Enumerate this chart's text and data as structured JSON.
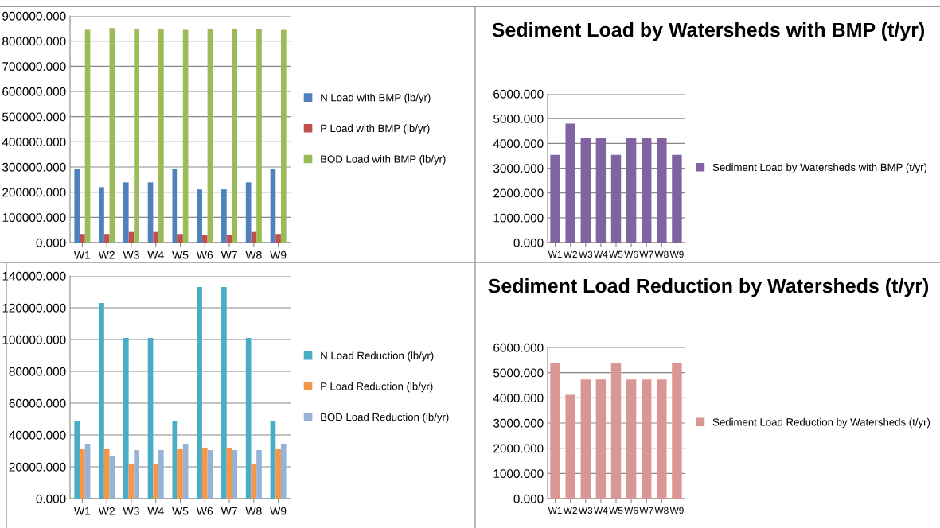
{
  "chart_data": [
    {
      "type": "bar",
      "categories": [
        "W1",
        "W2",
        "W3",
        "W4",
        "W5",
        "W6",
        "W7",
        "W8",
        "W9"
      ],
      "series": [
        {
          "name": "N Load with BMP (lb/yr)",
          "color": "#4f81bd",
          "values": [
            293000,
            220000,
            239000,
            239000,
            293000,
            211000,
            211000,
            239000,
            293000
          ]
        },
        {
          "name": "P Load with BMP (lb/yr)",
          "color": "#c0504d",
          "values": [
            34000,
            34000,
            42000,
            42000,
            34000,
            29000,
            29000,
            42000,
            34000
          ]
        },
        {
          "name": "BOD Load with BMP (lb/yr)",
          "color": "#9bbb59",
          "values": [
            845000,
            852000,
            849000,
            849000,
            845000,
            849000,
            849000,
            849000,
            845000
          ]
        }
      ],
      "ylim": [
        0,
        900000
      ],
      "yticks": [
        {
          "value": 0,
          "label": "0.000"
        },
        {
          "value": 100000,
          "label": "100000.000"
        },
        {
          "value": 200000,
          "label": "200000.000"
        },
        {
          "value": 300000,
          "label": "300000.000"
        },
        {
          "value": 400000,
          "label": "400000.000"
        },
        {
          "value": 500000,
          "label": "500000.000"
        },
        {
          "value": 600000,
          "label": "600000.000"
        },
        {
          "value": 700000,
          "label": "700000.000"
        },
        {
          "value": 800000,
          "label": "800000.000"
        },
        {
          "value": 900000,
          "label": "900000.000"
        }
      ],
      "grid": "y",
      "legend": "right"
    },
    {
      "type": "bar",
      "title": "Sediment Load by Watersheds with BMP (t/yr)",
      "categories": [
        "W1",
        "W2",
        "W3",
        "W4",
        "W5",
        "W6",
        "W7",
        "W8",
        "W9"
      ],
      "series": [
        {
          "name": "Sediment Load by Watersheds with BMP (t/yr)",
          "color": "#8064a2",
          "values": [
            3540,
            4800,
            4200,
            4200,
            3540,
            4200,
            4200,
            4200,
            3540
          ]
        }
      ],
      "ylim": [
        0,
        6000
      ],
      "yticks": [
        {
          "value": 0,
          "label": "0.000"
        },
        {
          "value": 1000,
          "label": "1000.000"
        },
        {
          "value": 2000,
          "label": "2000.000"
        },
        {
          "value": 3000,
          "label": "3000.000"
        },
        {
          "value": 4000,
          "label": "4000.000"
        },
        {
          "value": 5000,
          "label": "5000.000"
        },
        {
          "value": 6000,
          "label": "6000.000"
        }
      ],
      "grid": "y",
      "legend": "right"
    },
    {
      "type": "bar",
      "categories": [
        "W1",
        "W2",
        "W3",
        "W4",
        "W5",
        "W6",
        "W7",
        "W8",
        "W9"
      ],
      "series": [
        {
          "name": "N Load Reduction (lb/yr)",
          "color": "#4bacc6",
          "values": [
            49000,
            123000,
            101000,
            101000,
            49000,
            133000,
            133000,
            101000,
            49000
          ]
        },
        {
          "name": "P Load Reduction (lb/yr)",
          "color": "#f79646",
          "values": [
            31000,
            31000,
            21500,
            21500,
            31000,
            32000,
            32000,
            21500,
            31000
          ]
        },
        {
          "name": "BOD Load Reduction (lb/yr)",
          "color": "#95b3d7",
          "values": [
            34500,
            26700,
            30500,
            30500,
            34500,
            30500,
            30500,
            30500,
            34500
          ]
        }
      ],
      "ylim": [
        0,
        140000
      ],
      "yticks": [
        {
          "value": 0,
          "label": "0.000"
        },
        {
          "value": 20000,
          "label": "20000.000"
        },
        {
          "value": 40000,
          "label": "40000.000"
        },
        {
          "value": 60000,
          "label": "60000.000"
        },
        {
          "value": 80000,
          "label": "80000.000"
        },
        {
          "value": 100000,
          "label": "100000.000"
        },
        {
          "value": 120000,
          "label": "120000.000"
        },
        {
          "value": 140000,
          "label": "140000.000"
        }
      ],
      "grid": "y",
      "legend": "right"
    },
    {
      "type": "bar",
      "title": "Sediment Load Reduction by Watersheds (t/yr)",
      "categories": [
        "W1",
        "W2",
        "W3",
        "W4",
        "W5",
        "W6",
        "W7",
        "W8",
        "W9"
      ],
      "series": [
        {
          "name": "Sediment Load Reduction by Watersheds (t/yr)",
          "color": "#d99694",
          "values": [
            5380,
            4120,
            4730,
            4730,
            5380,
            4730,
            4730,
            4730,
            5380
          ]
        }
      ],
      "ylim": [
        0,
        6000
      ],
      "yticks": [
        {
          "value": 0,
          "label": "0.000"
        },
        {
          "value": 1000,
          "label": "1000.000"
        },
        {
          "value": 2000,
          "label": "2000.000"
        },
        {
          "value": 3000,
          "label": "3000.000"
        },
        {
          "value": 4000,
          "label": "4000.000"
        },
        {
          "value": 5000,
          "label": "5000.000"
        },
        {
          "value": 6000,
          "label": "6000.000"
        }
      ],
      "grid": "y",
      "legend": "right"
    }
  ]
}
